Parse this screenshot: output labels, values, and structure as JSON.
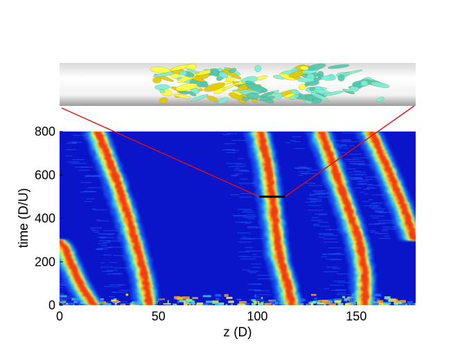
{
  "chart_data": {
    "type": "heatmap",
    "xlabel": "z (D)",
    "ylabel": "time (D/U)",
    "xlim": [
      0,
      180
    ],
    "ylim": [
      0,
      800
    ],
    "xticks": [
      "0",
      "50",
      "100",
      "150"
    ],
    "xtick_values": [
      0,
      50,
      100,
      150
    ],
    "yticks": [
      "0",
      "200",
      "400",
      "600",
      "800"
    ],
    "ytick_values": [
      0,
      200,
      400,
      600,
      800
    ],
    "colormap": {
      "background": "#0a14c8",
      "stops": [
        "#0a14c8",
        "#1e64ff",
        "#3cd2e6",
        "#8cf0a0",
        "#f0f050",
        "#ffa01e",
        "#f03c14",
        "#d21414"
      ]
    },
    "puffs": [
      {
        "name": "puff-1",
        "path": [
          [
            18,
            0
          ],
          [
            12,
            80
          ],
          [
            6,
            200
          ],
          [
            3,
            270
          ],
          [
            0,
            300
          ]
        ],
        "end_time": 300
      },
      {
        "name": "puff-2",
        "path": [
          [
            46,
            0
          ],
          [
            44,
            120
          ],
          [
            40,
            260
          ],
          [
            35,
            420
          ],
          [
            30,
            560
          ],
          [
            25,
            680
          ],
          [
            20,
            800
          ]
        ]
      },
      {
        "name": "puff-3",
        "path": [
          [
            118,
            0
          ],
          [
            116,
            100
          ],
          [
            112,
            220
          ],
          [
            110,
            360
          ],
          [
            108,
            500
          ],
          [
            106,
            640
          ],
          [
            102,
            800
          ]
        ]
      },
      {
        "name": "puff-4",
        "path": [
          [
            155,
            0
          ],
          [
            155,
            150
          ],
          [
            152,
            300
          ],
          [
            146,
            460
          ],
          [
            140,
            620
          ],
          [
            133,
            800
          ]
        ]
      },
      {
        "name": "puff-5",
        "path": [
          [
            180,
            300
          ],
          [
            175,
            440
          ],
          [
            167,
            620
          ],
          [
            158,
            800
          ]
        ]
      }
    ],
    "highlight_segment": {
      "z": [
        101,
        114
      ],
      "time": 500,
      "color": "#000000"
    },
    "inset": {
      "description_colors": [
        "#ffff3c",
        "#e6c800",
        "#78f0dc",
        "#50c8b4"
      ],
      "link_color": "#e01010"
    }
  }
}
